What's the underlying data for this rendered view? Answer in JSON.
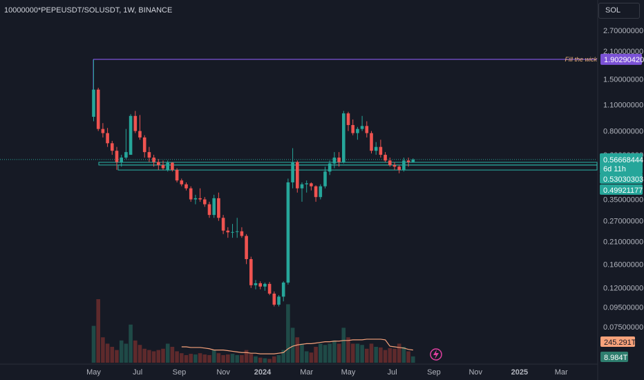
{
  "header": {
    "symbol_title": "10000000*PEPEUSDT/SOLUSDT, 1W, BINANCE"
  },
  "scale_button": {
    "label": "SOL"
  },
  "icons": {
    "lightning": "lightning-icon"
  },
  "colors": {
    "background": "#161a25",
    "up": "#26a69a",
    "down": "#ef5350",
    "up_volume": "#1f4a47",
    "down_volume": "#5e2a2c",
    "level_line": "#7b52d6",
    "support_line": "#2bb5a7",
    "volume_ma": "#f7a27b"
  },
  "chart_data": {
    "type": "candlestick",
    "scale": "log",
    "x_labels": [
      "May",
      "Jul",
      "Sep",
      "Nov",
      "2024",
      "Mar",
      "May",
      "Jul",
      "Sep",
      "Nov",
      "2025",
      "Mar"
    ],
    "y_ticks": [
      "2.70000000",
      "2.10000000",
      "1.50000000",
      "1.10000000",
      "0.80000000",
      "0.60000000",
      "0.35000000",
      "0.27000000",
      "0.21000000",
      "0.16000000",
      "0.12000000",
      "0.09500000",
      "0.07500000"
    ],
    "y_tick_values": [
      2.7,
      2.1,
      1.5,
      1.1,
      0.8,
      0.6,
      0.35,
      0.27,
      0.21,
      0.16,
      0.12,
      0.095,
      0.075
    ],
    "annotation": {
      "text": "Fill the wick",
      "value": 1.9029042,
      "label": "1.90290420"
    },
    "price_labels": [
      {
        "label": "0.56668444",
        "sublabel": "6d 11h",
        "value": 0.56668444
      },
      {
        "label": "0.53030303",
        "value": 0.53030303
      },
      {
        "label": "0.49921177",
        "value": 0.49921177
      }
    ],
    "volume_labels": [
      {
        "label": "245.291T",
        "kind": "volume-ma"
      },
      {
        "label": "8.984T",
        "kind": "volume"
      }
    ],
    "candles": [
      {
        "date": "2023-05-01",
        "o": 0.95,
        "h": 1.9,
        "l": 0.9,
        "c": 1.32
      },
      {
        "date": "2023-05-08",
        "o": 1.32,
        "h": 1.35,
        "l": 0.8,
        "c": 0.82
      },
      {
        "date": "2023-05-15",
        "o": 0.82,
        "h": 0.88,
        "l": 0.74,
        "c": 0.78
      },
      {
        "date": "2023-05-22",
        "o": 0.78,
        "h": 0.83,
        "l": 0.66,
        "c": 0.69
      },
      {
        "date": "2023-05-29",
        "o": 0.69,
        "h": 0.71,
        "l": 0.6,
        "c": 0.63
      },
      {
        "date": "2023-06-05",
        "o": 0.63,
        "h": 0.66,
        "l": 0.5,
        "c": 0.55
      },
      {
        "date": "2023-06-12",
        "o": 0.55,
        "h": 0.6,
        "l": 0.52,
        "c": 0.58
      },
      {
        "date": "2023-06-19",
        "o": 0.58,
        "h": 0.82,
        "l": 0.57,
        "c": 0.62
      },
      {
        "date": "2023-06-26",
        "o": 0.6,
        "h": 0.98,
        "l": 0.6,
        "c": 0.96
      },
      {
        "date": "2023-07-03",
        "o": 0.96,
        "h": 1.02,
        "l": 0.78,
        "c": 0.8
      },
      {
        "date": "2023-07-10",
        "o": 0.8,
        "h": 0.97,
        "l": 0.72,
        "c": 0.74
      },
      {
        "date": "2023-07-17",
        "o": 0.74,
        "h": 0.76,
        "l": 0.58,
        "c": 0.62
      },
      {
        "date": "2023-07-24",
        "o": 0.62,
        "h": 0.66,
        "l": 0.55,
        "c": 0.58
      },
      {
        "date": "2023-07-31",
        "o": 0.58,
        "h": 0.6,
        "l": 0.52,
        "c": 0.55
      },
      {
        "date": "2023-08-07",
        "o": 0.55,
        "h": 0.57,
        "l": 0.5,
        "c": 0.53
      },
      {
        "date": "2023-08-14",
        "o": 0.53,
        "h": 0.56,
        "l": 0.5,
        "c": 0.51
      },
      {
        "date": "2023-08-21",
        "o": 0.5,
        "h": 0.56,
        "l": 0.49,
        "c": 0.545
      },
      {
        "date": "2023-08-28",
        "o": 0.545,
        "h": 0.55,
        "l": 0.49,
        "c": 0.5
      },
      {
        "date": "2023-09-04",
        "o": 0.5,
        "h": 0.51,
        "l": 0.43,
        "c": 0.44
      },
      {
        "date": "2023-09-11",
        "o": 0.44,
        "h": 0.45,
        "l": 0.41,
        "c": 0.42
      },
      {
        "date": "2023-09-18",
        "o": 0.42,
        "h": 0.43,
        "l": 0.39,
        "c": 0.4
      },
      {
        "date": "2023-09-25",
        "o": 0.4,
        "h": 0.41,
        "l": 0.34,
        "c": 0.35
      },
      {
        "date": "2023-10-02",
        "o": 0.35,
        "h": 0.37,
        "l": 0.33,
        "c": 0.355
      },
      {
        "date": "2023-10-09",
        "o": 0.355,
        "h": 0.4,
        "l": 0.34,
        "c": 0.35
      },
      {
        "date": "2023-10-16",
        "o": 0.35,
        "h": 0.36,
        "l": 0.32,
        "c": 0.33
      },
      {
        "date": "2023-10-23",
        "o": 0.33,
        "h": 0.34,
        "l": 0.28,
        "c": 0.29
      },
      {
        "date": "2023-10-30",
        "o": 0.29,
        "h": 0.37,
        "l": 0.28,
        "c": 0.355
      },
      {
        "date": "2023-11-06",
        "o": 0.355,
        "h": 0.38,
        "l": 0.27,
        "c": 0.28
      },
      {
        "date": "2023-11-13",
        "o": 0.28,
        "h": 0.29,
        "l": 0.23,
        "c": 0.24
      },
      {
        "date": "2023-11-20",
        "o": 0.24,
        "h": 0.25,
        "l": 0.22,
        "c": 0.235
      },
      {
        "date": "2023-11-27",
        "o": 0.235,
        "h": 0.26,
        "l": 0.22,
        "c": 0.236
      },
      {
        "date": "2023-12-04",
        "o": 0.236,
        "h": 0.28,
        "l": 0.22,
        "c": 0.238
      },
      {
        "date": "2023-12-11",
        "o": 0.238,
        "h": 0.25,
        "l": 0.22,
        "c": 0.225
      },
      {
        "date": "2023-12-18",
        "o": 0.225,
        "h": 0.23,
        "l": 0.16,
        "c": 0.17
      },
      {
        "date": "2023-12-25",
        "o": 0.17,
        "h": 0.175,
        "l": 0.12,
        "c": 0.124
      },
      {
        "date": "2024-01-01",
        "o": 0.124,
        "h": 0.132,
        "l": 0.118,
        "c": 0.127
      },
      {
        "date": "2024-01-08",
        "o": 0.127,
        "h": 0.13,
        "l": 0.118,
        "c": 0.122
      },
      {
        "date": "2024-01-15",
        "o": 0.122,
        "h": 0.128,
        "l": 0.116,
        "c": 0.126
      },
      {
        "date": "2024-01-22",
        "o": 0.126,
        "h": 0.129,
        "l": 0.11,
        "c": 0.112
      },
      {
        "date": "2024-01-29",
        "o": 0.112,
        "h": 0.115,
        "l": 0.096,
        "c": 0.098
      },
      {
        "date": "2024-02-05",
        "o": 0.098,
        "h": 0.11,
        "l": 0.096,
        "c": 0.108
      },
      {
        "date": "2024-02-12",
        "o": 0.108,
        "h": 0.13,
        "l": 0.102,
        "c": 0.128
      },
      {
        "date": "2024-02-19",
        "o": 0.128,
        "h": 0.45,
        "l": 0.125,
        "c": 0.43
      },
      {
        "date": "2024-02-26",
        "o": 0.43,
        "h": 0.65,
        "l": 0.4,
        "c": 0.55
      },
      {
        "date": "2024-03-04",
        "o": 0.55,
        "h": 0.56,
        "l": 0.38,
        "c": 0.4
      },
      {
        "date": "2024-03-11",
        "o": 0.4,
        "h": 0.43,
        "l": 0.34,
        "c": 0.42
      },
      {
        "date": "2024-03-18",
        "o": 0.42,
        "h": 0.44,
        "l": 0.38,
        "c": 0.425
      },
      {
        "date": "2024-03-25",
        "o": 0.425,
        "h": 0.43,
        "l": 0.39,
        "c": 0.41
      },
      {
        "date": "2024-04-01",
        "o": 0.41,
        "h": 0.415,
        "l": 0.34,
        "c": 0.36
      },
      {
        "date": "2024-04-08",
        "o": 0.36,
        "h": 0.42,
        "l": 0.35,
        "c": 0.41
      },
      {
        "date": "2024-04-15",
        "o": 0.41,
        "h": 0.52,
        "l": 0.4,
        "c": 0.49
      },
      {
        "date": "2024-04-22",
        "o": 0.49,
        "h": 0.56,
        "l": 0.47,
        "c": 0.54
      },
      {
        "date": "2024-04-29",
        "o": 0.54,
        "h": 0.62,
        "l": 0.51,
        "c": 0.58
      },
      {
        "date": "2024-05-06",
        "o": 0.58,
        "h": 0.62,
        "l": 0.52,
        "c": 0.55
      },
      {
        "date": "2024-05-13",
        "o": 0.55,
        "h": 1.02,
        "l": 0.54,
        "c": 0.99
      },
      {
        "date": "2024-05-20",
        "o": 0.99,
        "h": 1.01,
        "l": 0.8,
        "c": 0.86
      },
      {
        "date": "2024-05-27",
        "o": 0.86,
        "h": 0.92,
        "l": 0.76,
        "c": 0.78
      },
      {
        "date": "2024-06-03",
        "o": 0.78,
        "h": 0.84,
        "l": 0.72,
        "c": 0.82
      },
      {
        "date": "2024-06-10",
        "o": 0.82,
        "h": 0.96,
        "l": 0.8,
        "c": 0.85
      },
      {
        "date": "2024-06-17",
        "o": 0.85,
        "h": 0.9,
        "l": 0.74,
        "c": 0.78
      },
      {
        "date": "2024-06-24",
        "o": 0.78,
        "h": 0.8,
        "l": 0.61,
        "c": 0.63
      },
      {
        "date": "2024-07-01",
        "o": 0.63,
        "h": 0.7,
        "l": 0.6,
        "c": 0.66
      },
      {
        "date": "2024-07-08",
        "o": 0.66,
        "h": 0.72,
        "l": 0.58,
        "c": 0.6
      },
      {
        "date": "2024-07-15",
        "o": 0.6,
        "h": 0.62,
        "l": 0.55,
        "c": 0.56
      },
      {
        "date": "2024-07-22",
        "o": 0.56,
        "h": 0.58,
        "l": 0.52,
        "c": 0.53
      },
      {
        "date": "2024-07-29",
        "o": 0.53,
        "h": 0.55,
        "l": 0.5,
        "c": 0.52
      },
      {
        "date": "2024-08-05",
        "o": 0.52,
        "h": 0.53,
        "l": 0.48,
        "c": 0.5
      },
      {
        "date": "2024-08-12",
        "o": 0.5,
        "h": 0.58,
        "l": 0.49,
        "c": 0.56
      },
      {
        "date": "2024-08-19",
        "o": 0.56,
        "h": 0.58,
        "l": 0.52,
        "c": 0.55
      },
      {
        "date": "2024-08-26",
        "o": 0.55,
        "h": 0.575,
        "l": 0.545,
        "c": 0.5667
      }
    ],
    "volume": [
      0.58,
      1.0,
      0.4,
      0.3,
      0.25,
      0.2,
      0.35,
      0.3,
      0.6,
      0.35,
      0.28,
      0.22,
      0.2,
      0.18,
      0.2,
      0.22,
      0.3,
      0.25,
      0.18,
      0.15,
      0.12,
      0.14,
      0.13,
      0.15,
      0.13,
      0.12,
      0.2,
      0.15,
      0.12,
      0.13,
      0.14,
      0.12,
      0.12,
      0.2,
      0.14,
      0.1,
      0.08,
      0.07,
      0.06,
      0.1,
      0.12,
      0.2,
      0.92,
      0.55,
      0.4,
      0.3,
      0.18,
      0.16,
      0.25,
      0.3,
      0.28,
      0.3,
      0.35,
      0.3,
      0.55,
      0.4,
      0.3,
      0.3,
      0.28,
      0.22,
      0.3,
      0.25,
      0.24,
      0.2,
      0.23,
      0.22,
      0.3,
      0.25,
      0.18,
      0.1
    ],
    "volume_ma": [
      null,
      null,
      null,
      null,
      null,
      null,
      null,
      null,
      null,
      null,
      null,
      null,
      null,
      null,
      null,
      null,
      null,
      null,
      null,
      0.25,
      0.25,
      0.24,
      0.24,
      0.24,
      0.23,
      0.22,
      0.2,
      0.2,
      0.2,
      0.19,
      0.18,
      0.17,
      0.16,
      0.16,
      0.15,
      0.15,
      0.14,
      0.14,
      0.14,
      0.14,
      0.15,
      0.16,
      0.22,
      0.26,
      0.28,
      0.29,
      0.3,
      0.3,
      0.31,
      0.32,
      0.33,
      0.33,
      0.34,
      0.34,
      0.35,
      0.35,
      0.36,
      0.36,
      0.36,
      0.37,
      0.37,
      0.37,
      0.37,
      0.36,
      0.26,
      0.25,
      0.24,
      0.23,
      0.21,
      0.2
    ]
  }
}
